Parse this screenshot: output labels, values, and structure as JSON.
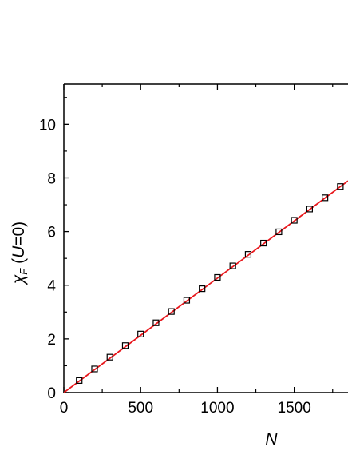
{
  "chart_data": {
    "type": "scatter",
    "xlabel": "N",
    "ylabel_parts": {
      "symbol": "χ",
      "subscript": "F",
      "open": " (",
      "variable": "U",
      "rest": "=0)"
    },
    "xlim": [
      0,
      1850
    ],
    "ylim": [
      0,
      11.5
    ],
    "x_ticks": [
      0,
      500,
      1000,
      1500
    ],
    "x_tick_labels": [
      "0",
      "500",
      "1000",
      "1500"
    ],
    "y_ticks": [
      0,
      2,
      4,
      6,
      8,
      10
    ],
    "y_tick_labels": [
      "0",
      "2",
      "4",
      "6",
      "8",
      "10"
    ],
    "series": [
      {
        "marker": "open-square",
        "color": "#000000",
        "x": [
          100,
          200,
          300,
          400,
          500,
          600,
          700,
          800,
          900,
          1000,
          1100,
          1200,
          1300,
          1400,
          1500,
          1600,
          1700,
          1800
        ],
        "y": [
          0.45,
          0.88,
          1.32,
          1.75,
          2.18,
          2.6,
          3.02,
          3.44,
          3.87,
          4.29,
          4.72,
          5.15,
          5.57,
          5.99,
          6.42,
          6.84,
          7.26,
          7.68
        ]
      },
      {
        "style": "line",
        "color": "#e8161b",
        "x": [
          0,
          1850
        ],
        "y": [
          0.0,
          7.89
        ]
      }
    ],
    "grid": false,
    "legend": "none"
  }
}
